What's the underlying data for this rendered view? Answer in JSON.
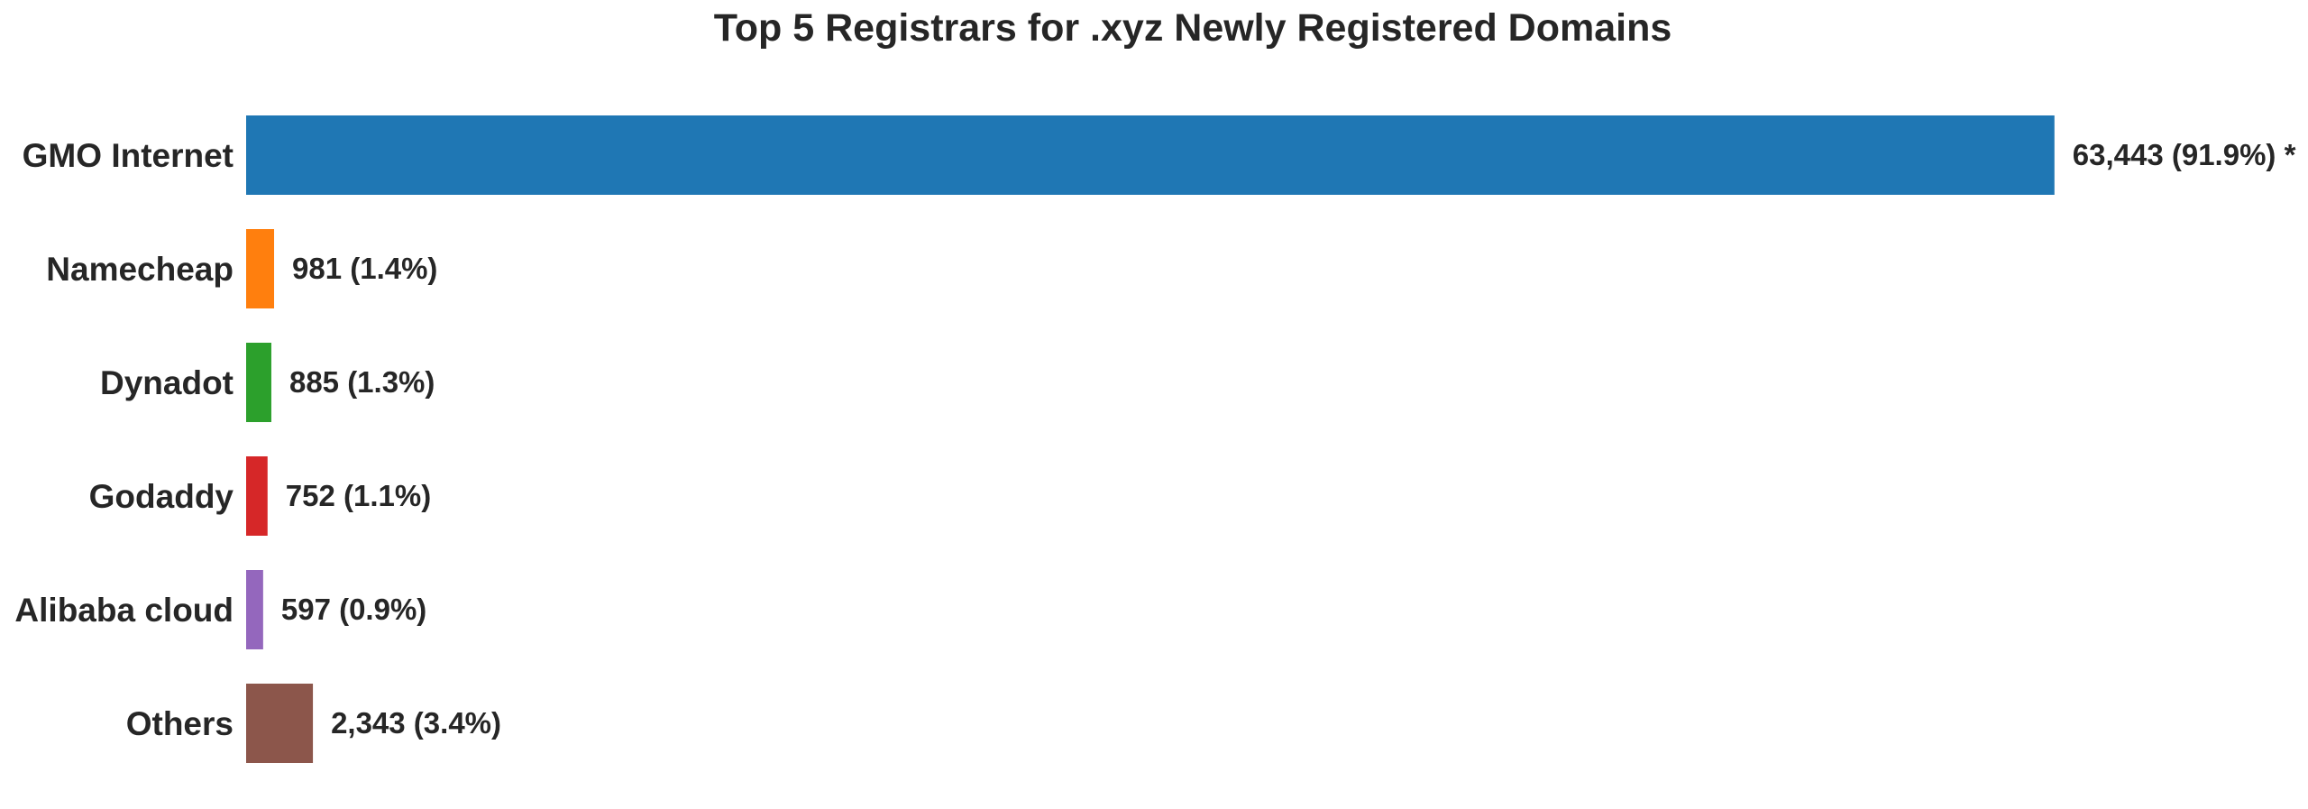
{
  "chart_data": {
    "type": "bar",
    "orientation": "horizontal",
    "title": "Top 5 Registrars for .xyz Newly Registered Domains",
    "xlabel": "",
    "ylabel": "",
    "categories": [
      "GMO Internet",
      "Namecheap",
      "Dynadot",
      "Godaddy",
      "Alibaba cloud",
      "Others"
    ],
    "values": [
      63443,
      981,
      885,
      752,
      597,
      2343
    ],
    "value_labels": [
      "63,443 (91.9%) *",
      "981 (1.4%)",
      "885 (1.3%)",
      "752 (1.1%)",
      "597 (0.9%)",
      "2,343 (3.4%)"
    ],
    "colors": [
      "#1f77b4",
      "#ff7f0e",
      "#2ca02c",
      "#d62728",
      "#9467bd",
      "#8c564b"
    ],
    "grid": false,
    "legend": "none"
  }
}
